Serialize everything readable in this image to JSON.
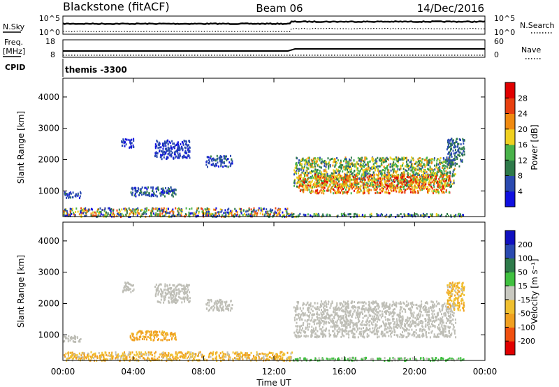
{
  "header": {
    "title": "Blackstone (fitACF)",
    "beam": "Beam 06",
    "date": "14/Dec/2016"
  },
  "summary": {
    "nsky_label": "N.Sky",
    "nsearch_label": "N.Search",
    "noise_ticks": [
      "10^5",
      "10^0"
    ],
    "noise_ticks_right": [
      "10^5",
      "10^0"
    ],
    "freq_label_1": "Freq.",
    "freq_label_2": "[MHz]",
    "freq_ticks": [
      "18",
      "8"
    ],
    "nave_label": "Nave",
    "nave_ticks": [
      "60",
      "0"
    ],
    "cpid_label": "CPID",
    "cpid_value": "themis -3300"
  },
  "colors": {
    "power_scale": [
      "#1010e0",
      "#2a4ab0",
      "#2e7a4a",
      "#49b24a",
      "#f0d020",
      "#f08a10",
      "#e84010",
      "#e00000"
    ],
    "velocity_scale": [
      "#e00000",
      "#f05010",
      "#f0a020",
      "#f0c030",
      "#c8c8c0",
      "#40c040",
      "#2e7a4a",
      "#2a4ab0",
      "#1010c0"
    ],
    "ground_scatter": "#bebeb6"
  },
  "chart_data": [
    {
      "type": "heatmap",
      "name": "power",
      "ylabel": "Slant Range [km]",
      "yticks": [
        1000,
        2000,
        3000,
        4000
      ],
      "ylim": [
        180,
        4600
      ],
      "xlim_hours": [
        0,
        24
      ],
      "colorbar": {
        "label": "Power [dB]",
        "ticks": [
          "4",
          "8",
          "12",
          "16",
          "20",
          "24",
          "28"
        ],
        "range": [
          0,
          32
        ]
      },
      "regions": [
        {
          "t": [
            0.0,
            13.0
          ],
          "r": [
            200,
            480
          ],
          "value": 14,
          "spread": 14
        },
        {
          "t": [
            13.0,
            22.8
          ],
          "r": [
            200,
            300
          ],
          "value": 10,
          "spread": 8
        },
        {
          "t": [
            0.0,
            1.0
          ],
          "r": [
            800,
            1000
          ],
          "value": 6,
          "spread": 3
        },
        {
          "t": [
            3.8,
            6.4
          ],
          "r": [
            850,
            1150
          ],
          "value": 7,
          "spread": 4
        },
        {
          "t": [
            3.3,
            4.0
          ],
          "r": [
            2400,
            2700
          ],
          "value": 5,
          "spread": 3
        },
        {
          "t": [
            5.2,
            7.2
          ],
          "r": [
            2050,
            2650
          ],
          "value": 5,
          "spread": 3
        },
        {
          "t": [
            8.1,
            9.6
          ],
          "r": [
            1800,
            2150
          ],
          "value": 6,
          "spread": 3
        },
        {
          "t": [
            13.1,
            22.3
          ],
          "r": [
            1150,
            2100
          ],
          "value": 14,
          "spread": 8
        },
        {
          "t": [
            13.3,
            22.0
          ],
          "r": [
            950,
            1550
          ],
          "value": 22,
          "spread": 8
        },
        {
          "t": [
            21.8,
            22.8
          ],
          "r": [
            1800,
            2700
          ],
          "value": 8,
          "spread": 4
        }
      ]
    },
    {
      "type": "heatmap",
      "name": "velocity",
      "ylabel": "Slant Range [km]",
      "yticks": [
        1000,
        2000,
        3000,
        4000
      ],
      "ylim": [
        180,
        4600
      ],
      "xlabel": "Time UT",
      "xticks": [
        "00:00",
        "04:00",
        "08:00",
        "12:00",
        "16:00",
        "20:00",
        "00:00"
      ],
      "xlim_hours": [
        0,
        24
      ],
      "colorbar": {
        "label": "Velocity [m s⁻¹]",
        "ticks": [
          "-200",
          "-100",
          "-50",
          "-15",
          "15",
          "50",
          "100",
          "200"
        ]
      },
      "regions": [
        {
          "t": [
            0.0,
            13.0
          ],
          "r": [
            200,
            480
          ],
          "value": -40,
          "spread": 40
        },
        {
          "t": [
            13.0,
            22.8
          ],
          "r": [
            200,
            300
          ],
          "value": 20,
          "spread": 20
        },
        {
          "t": [
            0.0,
            1.0
          ],
          "r": [
            800,
            1000
          ],
          "value": 0,
          "spread": 10
        },
        {
          "t": [
            3.8,
            6.4
          ],
          "r": [
            850,
            1150
          ],
          "value": -60,
          "spread": 20
        },
        {
          "t": [
            3.3,
            4.0
          ],
          "r": [
            2400,
            2700
          ],
          "value": 0,
          "spread": 10
        },
        {
          "t": [
            5.2,
            7.2
          ],
          "r": [
            2050,
            2650
          ],
          "value": 0,
          "spread": 10
        },
        {
          "t": [
            8.1,
            9.6
          ],
          "r": [
            1800,
            2150
          ],
          "value": 0,
          "spread": 10
        },
        {
          "t": [
            13.1,
            22.3
          ],
          "r": [
            950,
            2100
          ],
          "value": 0,
          "spread": 8
        },
        {
          "t": [
            21.8,
            22.8
          ],
          "r": [
            1800,
            2700
          ],
          "value": -40,
          "spread": 30
        }
      ]
    }
  ]
}
